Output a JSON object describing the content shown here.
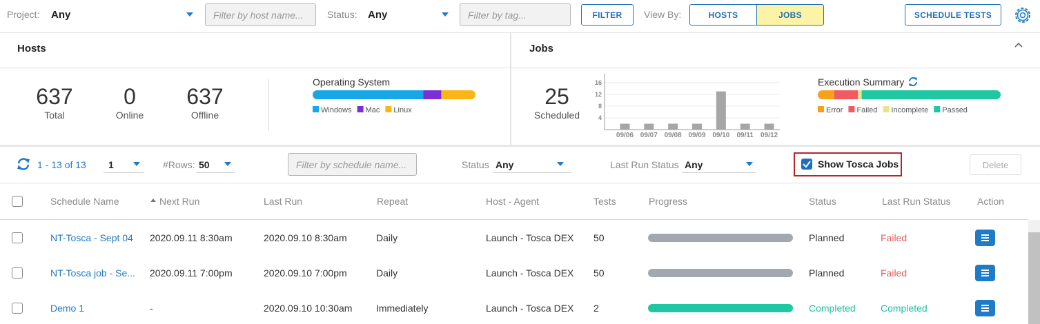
{
  "toolbar": {
    "project_label": "Project:",
    "project_value": "Any",
    "host_filter_placeholder": "Filter by host name...",
    "status_label": "Status:",
    "status_value": "Any",
    "tag_filter_placeholder": "Filter by tag...",
    "filter_button": "FILTER",
    "view_by_label": "View By:",
    "view_hosts": "HOSTS",
    "view_jobs": "JOBS",
    "schedule_button": "SCHEDULE TESTS"
  },
  "hosts_panel": {
    "title": "Hosts",
    "stats": [
      {
        "value": 637,
        "label": "Total"
      },
      {
        "value": 0,
        "label": "Online"
      },
      {
        "value": 637,
        "label": "Offline"
      }
    ],
    "os_chart": {
      "title": "Operating System",
      "segments": [
        {
          "name": "Windows",
          "color": "#17a6e8",
          "value": 68
        },
        {
          "name": "Mac",
          "color": "#7b2fd6",
          "value": 11
        },
        {
          "name": "Linux",
          "color": "#fbb516",
          "value": 21
        }
      ]
    }
  },
  "jobs_panel": {
    "title": "Jobs",
    "scheduled_value": 25,
    "scheduled_label": "Scheduled",
    "chart_data": {
      "type": "bar",
      "categories": [
        "09/06",
        "09/07",
        "09/08",
        "09/09",
        "09/10",
        "09/11",
        "09/12"
      ],
      "values": [
        2,
        2,
        2,
        2,
        13,
        2,
        2
      ],
      "color": "#a6a6a6",
      "ylim": [
        0,
        19
      ],
      "yticks": [
        4,
        8,
        12,
        16
      ],
      "grid": true
    },
    "execution_summary": {
      "title": "Execution Summary",
      "segments": [
        {
          "name": "Error",
          "color": "#f7a21b",
          "value": 9
        },
        {
          "name": "Failed",
          "color": "#f25a62",
          "value": 13
        },
        {
          "name": "Incomplete",
          "color": "#ebe38a",
          "value": 2
        },
        {
          "name": "Passed",
          "color": "#1fc8a2",
          "value": 76
        }
      ]
    }
  },
  "list_toolbar": {
    "range": "1 - 13 of 13",
    "page": "1",
    "rows_label": "#Rows:",
    "rows_value": "50",
    "schedule_filter_placeholder": "Filter by schedule name...",
    "status_label": "Status",
    "status_value": "Any",
    "last_run_status_label": "Last Run Status",
    "last_run_status_value": "Any",
    "show_tosca_jobs": "Show Tosca Jobs",
    "delete_button": "Delete"
  },
  "table": {
    "columns": [
      "Schedule Name",
      "Next Run",
      "Last Run",
      "Repeat",
      "Host - Agent",
      "Tests",
      "Progress",
      "Status",
      "Last Run Status",
      "Action"
    ],
    "rows": [
      {
        "name": "NT-Tosca - Sept 04",
        "next_run": "2020.09.11 8:30am",
        "last_run": "2020.09.10 8:30am",
        "repeat": "Daily",
        "host_agent": "Launch - Tosca DEX",
        "tests": 50,
        "progress_color": "#a3a8b0",
        "status": "Planned",
        "status_color": "#333333",
        "last_run_status": "Failed",
        "last_run_status_color": "#e35c5c"
      },
      {
        "name": "NT-Tosca job - Se...",
        "next_run": "2020.09.11 7:00pm",
        "last_run": "2020.09.10 7:00pm",
        "repeat": "Daily",
        "host_agent": "Launch - Tosca DEX",
        "tests": 50,
        "progress_color": "#a3a8b0",
        "status": "Planned",
        "status_color": "#333333",
        "last_run_status": "Failed",
        "last_run_status_color": "#e35c5c"
      },
      {
        "name": "Demo 1",
        "next_run": "-",
        "last_run": "2020.09.10 10:30am",
        "repeat": "Immediately",
        "host_agent": "Launch - Tosca DEX",
        "tests": 2,
        "progress_color": "#1fc8a2",
        "status": "Completed",
        "status_color": "#1fbfa0",
        "last_run_status": "Completed",
        "last_run_status_color": "#1fbfa0"
      }
    ]
  }
}
